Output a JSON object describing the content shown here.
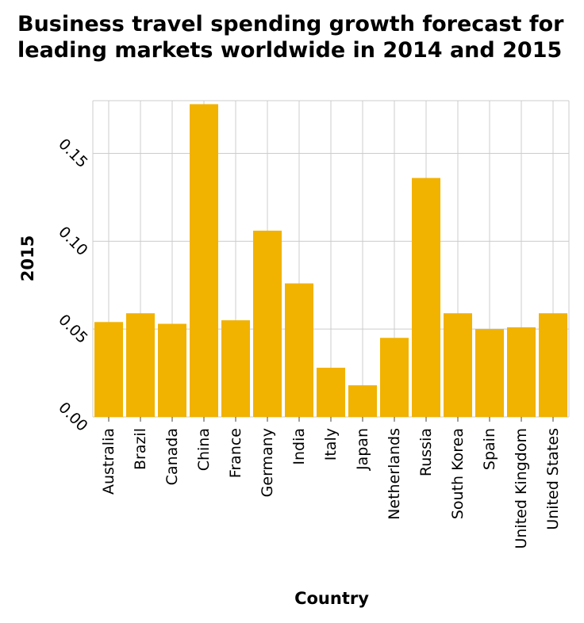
{
  "chart_data": {
    "type": "bar",
    "title": "Business travel spending growth forecast for leading markets worldwide in 2014 and 2015",
    "xlabel": "Country",
    "ylabel": "2015",
    "categories": [
      "Australia",
      "Brazil",
      "Canada",
      "China",
      "France",
      "Germany",
      "India",
      "Italy",
      "Japan",
      "Netherlands",
      "Russia",
      "South Korea",
      "Spain",
      "United Kingdom",
      "United States"
    ],
    "values": [
      0.054,
      0.059,
      0.053,
      0.178,
      0.055,
      0.106,
      0.076,
      0.028,
      0.018,
      0.045,
      0.136,
      0.059,
      0.05,
      0.051,
      0.059
    ],
    "yticks": [
      "0.00",
      "0.05",
      "0.10",
      "0.15"
    ],
    "ylim": [
      0,
      0.18
    ],
    "grid": true,
    "bar_color": "#f2b200"
  }
}
